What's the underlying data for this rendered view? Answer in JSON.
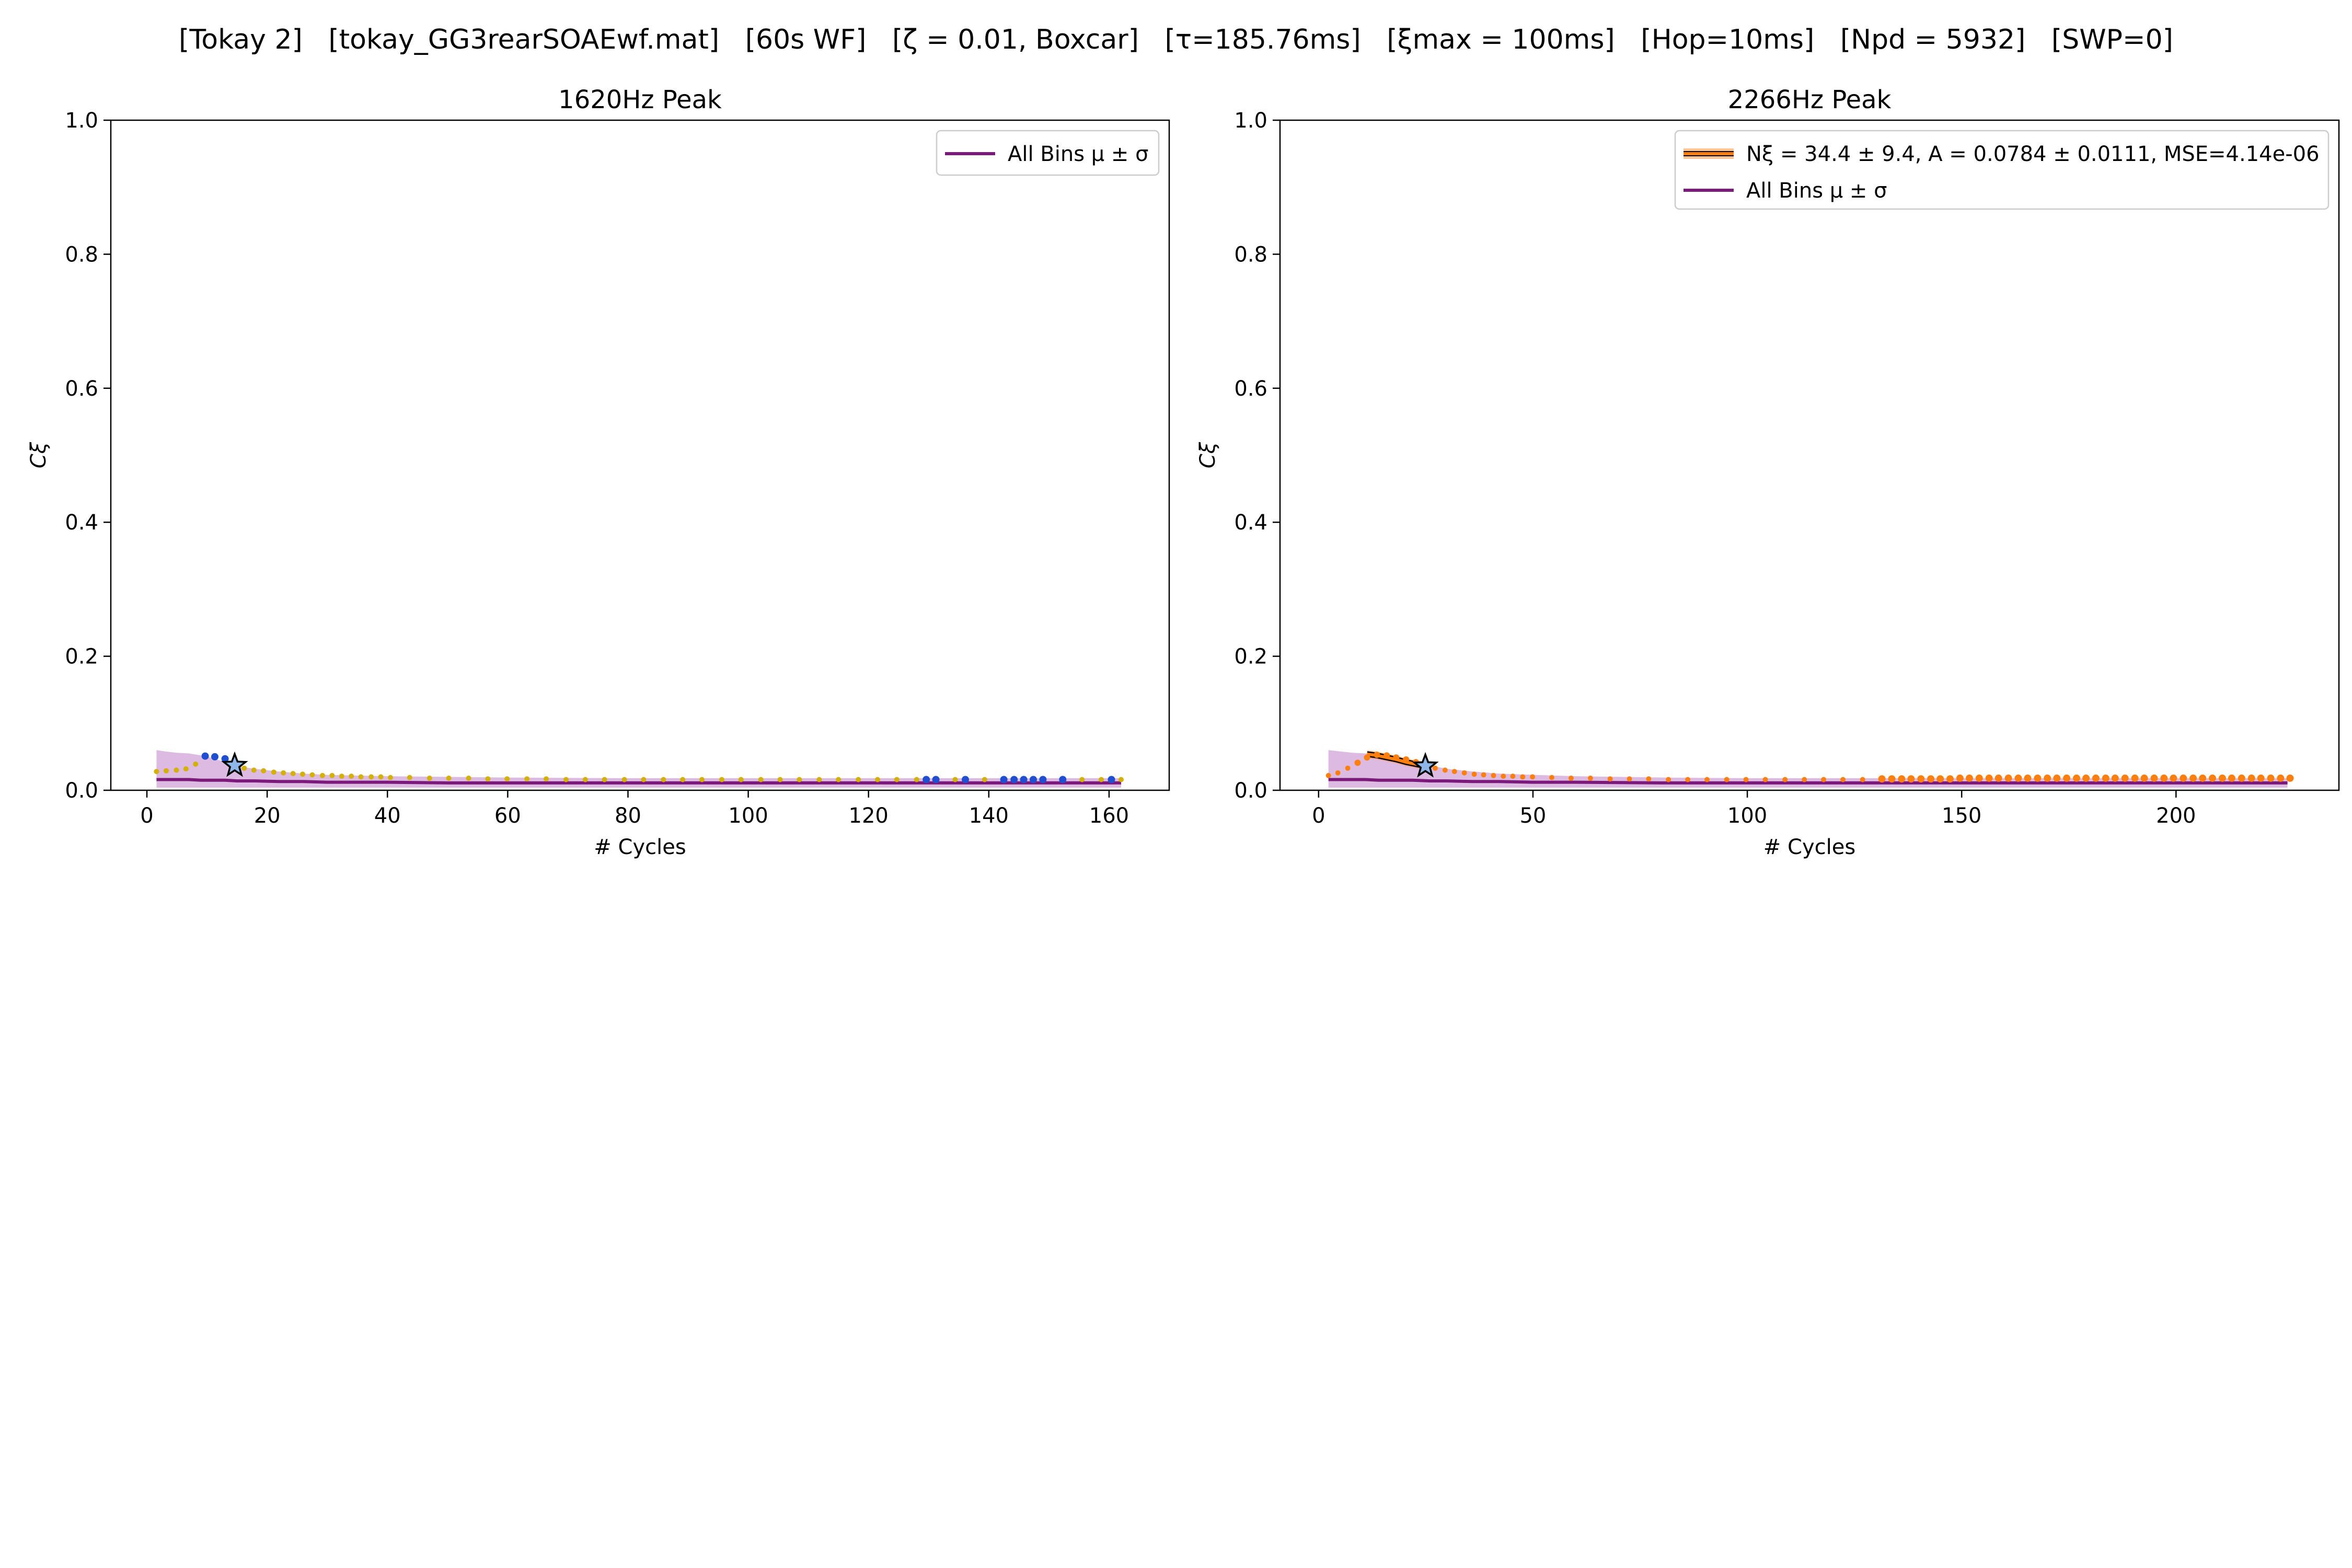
{
  "suptitle": {
    "parts": [
      {
        "text": "[Tokay 2]"
      },
      {
        "text": "   [tokay_GG3rearSOAEwf.mat]"
      },
      {
        "text": "   [60s WF]"
      },
      {
        "text": "   [ζ = 0.01, Boxcar]"
      },
      {
        "text": "   [τ=185.76ms]"
      },
      {
        "text": "   [ξmax = 100ms]"
      },
      {
        "text": "   [Hop=10ms]"
      },
      {
        "text": "   [Npd = 5932]"
      },
      {
        "text": "   [SWP=0]"
      }
    ]
  },
  "colors": {
    "purple": "#7b1a7b",
    "purple_fill": "#d7aedc",
    "orange": "#ff7f0e",
    "gold": "#d4b000",
    "blue": "#1f4fd0",
    "darkblue": "#1f77b4",
    "star_fill": "#8fb6e8"
  },
  "chart_data": [
    {
      "type": "scatter",
      "title": "1620Hz Peak",
      "xlabel": "# Cycles",
      "ylabel": "Cξ",
      "xlim": [
        -6,
        170
      ],
      "ylim": [
        0,
        1
      ],
      "xticks": [
        0,
        20,
        40,
        60,
        80,
        100,
        120,
        140,
        160
      ],
      "yticks": [
        0.0,
        0.2,
        0.4,
        0.6,
        0.8,
        1.0
      ],
      "grid": false,
      "legend_position": "top-right",
      "legend": [
        {
          "label": "All Bins μ ± σ",
          "color": "#7b1a7b",
          "style": "line"
        }
      ],
      "band": {
        "x": [
          1.6,
          3,
          5,
          7,
          9,
          11,
          13,
          15,
          18,
          22,
          26,
          30,
          40,
          50,
          60,
          80,
          100,
          120,
          140,
          160,
          162
        ],
        "upper": [
          0.06,
          0.058,
          0.056,
          0.055,
          0.052,
          0.048,
          0.042,
          0.036,
          0.032,
          0.028,
          0.025,
          0.023,
          0.021,
          0.02,
          0.019,
          0.018,
          0.018,
          0.018,
          0.018,
          0.018,
          0.018
        ],
        "mean": [
          0.016,
          0.016,
          0.016,
          0.016,
          0.015,
          0.015,
          0.015,
          0.014,
          0.014,
          0.013,
          0.013,
          0.012,
          0.012,
          0.011,
          0.011,
          0.011,
          0.011,
          0.011,
          0.011,
          0.011,
          0.011
        ],
        "lower": [
          0.004,
          0.004,
          0.004,
          0.004,
          0.004,
          0.004,
          0.004,
          0.004,
          0.004,
          0.004,
          0.004,
          0.004,
          0.004,
          0.004,
          0.004,
          0.004,
          0.004,
          0.004,
          0.004,
          0.004,
          0.004
        ]
      },
      "points": {
        "x": [
          1.6,
          3.2,
          4.9,
          6.5,
          8.1,
          9.7,
          11.3,
          13,
          14.6,
          16.2,
          17.8,
          19.4,
          21.1,
          22.7,
          24.3,
          25.9,
          27.5,
          29.2,
          30.8,
          32.4,
          34,
          35.6,
          37.3,
          38.9,
          40.5,
          43.7,
          47,
          50.2,
          53.5,
          56.7,
          59.9,
          63.2,
          66.4,
          69.7,
          72.9,
          76.1,
          79.4,
          82.6,
          85.9,
          89.1,
          92.3,
          95.6,
          98.8,
          102.1,
          105.3,
          108.5,
          111.8,
          115,
          118.3,
          121.5,
          124.7,
          128,
          129.6,
          131.2,
          134.4,
          136.1,
          139.3,
          142.5,
          144.2,
          145.8,
          147.4,
          149,
          152.3,
          155.5,
          158.7,
          160.4,
          162
        ],
        "y": [
          0.028,
          0.029,
          0.03,
          0.032,
          0.039,
          0.051,
          0.05,
          0.047,
          0.039,
          0.033,
          0.03,
          0.029,
          0.027,
          0.026,
          0.025,
          0.024,
          0.023,
          0.022,
          0.022,
          0.021,
          0.021,
          0.02,
          0.02,
          0.02,
          0.019,
          0.019,
          0.018,
          0.018,
          0.018,
          0.017,
          0.017,
          0.017,
          0.017,
          0.016,
          0.016,
          0.016,
          0.016,
          0.016,
          0.016,
          0.016,
          0.016,
          0.016,
          0.016,
          0.016,
          0.016,
          0.016,
          0.016,
          0.016,
          0.016,
          0.016,
          0.016,
          0.016,
          0.016,
          0.016,
          0.016,
          0.016,
          0.016,
          0.016,
          0.016,
          0.016,
          0.016,
          0.016,
          0.016,
          0.016,
          0.016,
          0.016,
          0.016
        ],
        "blue_x": [
          9.7,
          11.3,
          13,
          129.6,
          131.2,
          136.1,
          142.5,
          144.2,
          145.8,
          147.4,
          149,
          152.3,
          160.4
        ]
      },
      "star": {
        "x": 14.6,
        "y": 0.037
      }
    },
    {
      "type": "scatter",
      "title": "2266Hz Peak",
      "xlabel": "# Cycles",
      "ylabel": "Cξ",
      "xlim": [
        -9,
        238
      ],
      "ylim": [
        0,
        1
      ],
      "xticks": [
        0,
        50,
        100,
        150,
        200
      ],
      "yticks": [
        0.0,
        0.2,
        0.4,
        0.6,
        0.8,
        1.0
      ],
      "grid": false,
      "legend_position": "top-right",
      "legend": [
        {
          "label": "Nξ = 34.4 ± 9.4, A = 0.0784 ± 0.0111, MSE=4.14e-06",
          "color": "#ff7f0e",
          "style": "band-line"
        },
        {
          "label": "All Bins μ ± σ",
          "color": "#7b1a7b",
          "style": "line"
        }
      ],
      "band": {
        "x": [
          2.3,
          5,
          8,
          11,
          14,
          18,
          22,
          26,
          30,
          36,
          42,
          50,
          60,
          80,
          100,
          120,
          150,
          180,
          200,
          226
        ],
        "upper": [
          0.06,
          0.058,
          0.056,
          0.055,
          0.052,
          0.048,
          0.043,
          0.037,
          0.032,
          0.028,
          0.025,
          0.023,
          0.021,
          0.019,
          0.018,
          0.018,
          0.018,
          0.018,
          0.018,
          0.018
        ],
        "mean": [
          0.016,
          0.016,
          0.016,
          0.016,
          0.015,
          0.015,
          0.015,
          0.014,
          0.014,
          0.013,
          0.013,
          0.012,
          0.012,
          0.011,
          0.011,
          0.011,
          0.011,
          0.011,
          0.011,
          0.011
        ],
        "lower": [
          0.004,
          0.004,
          0.004,
          0.004,
          0.004,
          0.004,
          0.004,
          0.004,
          0.004,
          0.004,
          0.004,
          0.004,
          0.004,
          0.004,
          0.004,
          0.004,
          0.004,
          0.004,
          0.004,
          0.004
        ]
      },
      "points": {
        "x": [
          2.3,
          4.5,
          6.8,
          9.1,
          11.3,
          13.6,
          15.9,
          18.1,
          20.4,
          22.7,
          24.9,
          27.2,
          29.5,
          31.7,
          34,
          36.3,
          38.5,
          40.8,
          43.1,
          45.3,
          47.6,
          49.9,
          54.4,
          58.9,
          63.4,
          68,
          72.5,
          77,
          81.6,
          86.1,
          90.6,
          95.2,
          99.7,
          104.2,
          108.8,
          113.3,
          117.8,
          122.3,
          126.9,
          131.4,
          133.7,
          136,
          138.2,
          140.5,
          142.8,
          145,
          147.3,
          149.6,
          151.8,
          154.1,
          156.4,
          158.6,
          160.9,
          163.2,
          165.4,
          167.7,
          170,
          172.2,
          174.5,
          176.8,
          179,
          181.3,
          183.6,
          185.8,
          188.1,
          190.4,
          192.6,
          194.9,
          197.2,
          199.4,
          201.7,
          204,
          206.2,
          208.5,
          210.8,
          213,
          215.3,
          217.6,
          219.8,
          222.1,
          224.4,
          226.6
        ],
        "y": [
          0.022,
          0.026,
          0.033,
          0.041,
          0.049,
          0.053,
          0.052,
          0.049,
          0.046,
          0.042,
          0.037,
          0.033,
          0.03,
          0.028,
          0.026,
          0.024,
          0.023,
          0.022,
          0.021,
          0.021,
          0.02,
          0.02,
          0.019,
          0.018,
          0.018,
          0.017,
          0.017,
          0.017,
          0.016,
          0.016,
          0.016,
          0.016,
          0.016,
          0.016,
          0.016,
          0.016,
          0.016,
          0.016,
          0.016,
          0.017,
          0.017,
          0.017,
          0.017,
          0.017,
          0.017,
          0.017,
          0.017,
          0.018,
          0.018,
          0.018,
          0.018,
          0.018,
          0.018,
          0.018,
          0.018,
          0.018,
          0.018,
          0.018,
          0.018,
          0.018,
          0.018,
          0.018,
          0.018,
          0.018,
          0.018,
          0.018,
          0.018,
          0.018,
          0.018,
          0.018,
          0.018,
          0.018,
          0.018,
          0.018,
          0.018,
          0.018,
          0.018,
          0.018,
          0.018,
          0.018,
          0.018,
          0.018
        ],
        "orange_from_x": 131
      },
      "fit": {
        "x": [
          11.3,
          13.6,
          15.9,
          18.1,
          20.4,
          22.7,
          24.9
        ],
        "y": [
          0.054,
          0.052,
          0.049,
          0.046,
          0.042,
          0.039,
          0.036
        ],
        "err": 0.006
      },
      "star": {
        "x": 24.9,
        "y": 0.036
      }
    }
  ]
}
